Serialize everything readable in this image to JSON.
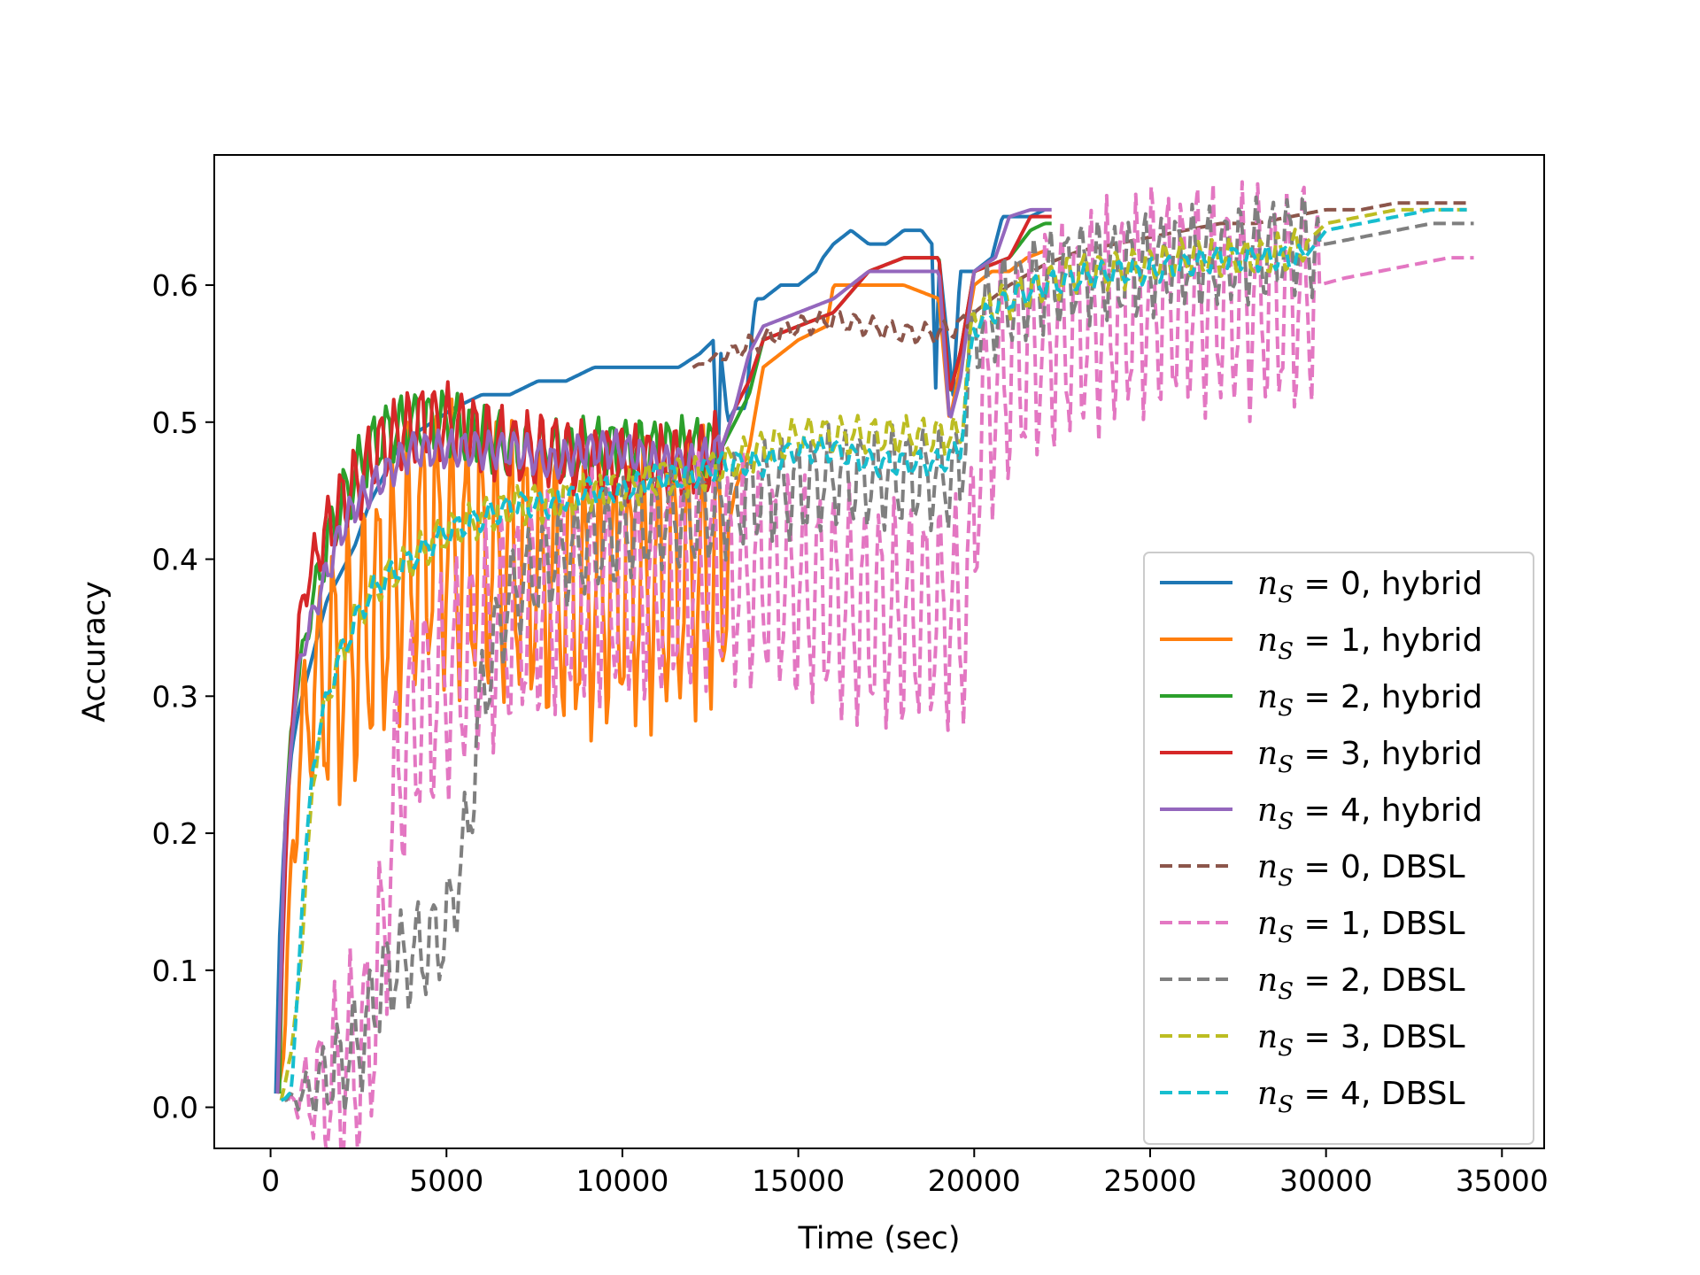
{
  "chart_data": {
    "type": "line",
    "title": "",
    "xlabel": "Time (sec)",
    "ylabel": "Accuracy",
    "xlim": [
      -1600,
      36200
    ],
    "ylim": [
      -0.03,
      0.695
    ],
    "xticks": [
      0,
      5000,
      10000,
      15000,
      20000,
      25000,
      30000,
      35000
    ],
    "xtick_labels": [
      "0",
      "5000",
      "10000",
      "15000",
      "20000",
      "25000",
      "30000",
      "35000"
    ],
    "yticks": [
      0.0,
      0.1,
      0.2,
      0.3,
      0.4,
      0.5,
      0.6
    ],
    "ytick_labels": [
      "0.0",
      "0.1",
      "0.2",
      "0.3",
      "0.4",
      "0.5",
      "0.6"
    ],
    "grid": false,
    "legend_position": "lower right",
    "series": [
      {
        "name": "n_S = 0, hybrid",
        "label_math": "n",
        "label_sub": "S",
        "label_rest": " = 0, hybrid",
        "color": "#1f77b4",
        "dash": "solid",
        "x": [
          150,
          250,
          400,
          600,
          800,
          1000,
          1300,
          1600,
          2000,
          2400,
          2800,
          3200,
          3600,
          4000,
          4600,
          5200,
          6000,
          6800,
          7600,
          8400,
          9200,
          10000,
          10800,
          11600,
          12200,
          12600,
          12700,
          12800,
          13000,
          13200,
          13500,
          13700,
          13800,
          14000,
          14500,
          15000,
          15500,
          15700,
          16000,
          16500,
          17000,
          17500,
          18000,
          18500,
          18800,
          18900,
          19000,
          19400,
          19600,
          20000,
          20500,
          20800,
          21200,
          21600,
          22000
        ],
        "y": [
          0.01,
          0.12,
          0.2,
          0.26,
          0.29,
          0.31,
          0.34,
          0.37,
          0.39,
          0.41,
          0.44,
          0.46,
          0.48,
          0.49,
          0.5,
          0.51,
          0.52,
          0.52,
          0.53,
          0.53,
          0.54,
          0.54,
          0.54,
          0.54,
          0.55,
          0.56,
          0.45,
          0.55,
          0.5,
          0.51,
          0.51,
          0.57,
          0.59,
          0.59,
          0.6,
          0.6,
          0.61,
          0.62,
          0.63,
          0.64,
          0.63,
          0.63,
          0.64,
          0.64,
          0.63,
          0.52,
          0.62,
          0.52,
          0.61,
          0.61,
          0.62,
          0.65,
          0.65,
          0.65,
          0.655
        ]
      },
      {
        "name": "n_S = 1, hybrid",
        "label_math": "n",
        "label_sub": "S",
        "label_rest": " = 1, hybrid",
        "color": "#ff7f0e",
        "dash": "solid",
        "x": [
          200,
          400,
          600,
          900,
          1200,
          1500,
          2000,
          2500,
          3000,
          3500,
          4000,
          4500,
          5000,
          5500,
          6000,
          7000,
          8000,
          9000,
          10000,
          11000,
          12000,
          12800,
          13200,
          13600,
          14000,
          15000,
          15800,
          16000,
          17000,
          18000,
          19000,
          19300,
          19600,
          20000,
          20500,
          21000,
          21500,
          22000
        ],
        "y": [
          0.01,
          0.05,
          0.18,
          0.27,
          0.3,
          0.31,
          0.32,
          0.34,
          0.36,
          0.38,
          0.4,
          0.41,
          0.41,
          0.4,
          0.4,
          0.4,
          0.38,
          0.37,
          0.38,
          0.38,
          0.39,
          0.39,
          0.45,
          0.48,
          0.54,
          0.56,
          0.57,
          0.6,
          0.6,
          0.6,
          0.59,
          0.5,
          0.54,
          0.6,
          0.61,
          0.61,
          0.62,
          0.625
        ],
        "osc_until": 13000,
        "osc_amp": 0.11,
        "osc_period": 420
      },
      {
        "name": "n_S = 2, hybrid",
        "label_math": "n",
        "label_sub": "S",
        "label_rest": " = 2, hybrid",
        "color": "#2ca02c",
        "dash": "solid",
        "x": [
          250,
          400,
          600,
          900,
          1200,
          1600,
          2000,
          2400,
          2800,
          3200,
          4000,
          5000,
          6000,
          7000,
          8000,
          9000,
          10000,
          11000,
          12000,
          12800,
          13200,
          13600,
          14000,
          15000,
          16000,
          17000,
          18000,
          19000,
          19300,
          19600,
          20000,
          21000,
          21600,
          22000,
          22200
        ],
        "y": [
          0.01,
          0.2,
          0.28,
          0.33,
          0.37,
          0.41,
          0.44,
          0.46,
          0.48,
          0.49,
          0.5,
          0.5,
          0.49,
          0.48,
          0.48,
          0.48,
          0.48,
          0.48,
          0.48,
          0.48,
          0.5,
          0.52,
          0.56,
          0.57,
          0.58,
          0.61,
          0.62,
          0.62,
          0.52,
          0.55,
          0.61,
          0.62,
          0.64,
          0.645,
          0.645
        ],
        "osc_until": 12800,
        "osc_amp": 0.025,
        "osc_period": 400
      },
      {
        "name": "n_S = 3, hybrid",
        "label_math": "n",
        "label_sub": "S",
        "label_rest": " = 3, hybrid",
        "color": "#d62728",
        "dash": "solid",
        "x": [
          200,
          400,
          600,
          800,
          1000,
          1400,
          1800,
          2200,
          2600,
          3000,
          3600,
          4200,
          5000,
          6000,
          7000,
          8000,
          9000,
          10000,
          11000,
          12000,
          12800,
          13200,
          13600,
          14000,
          15000,
          16000,
          17000,
          18000,
          19000,
          19300,
          19600,
          20000,
          21000,
          21600,
          22200
        ],
        "y": [
          0.01,
          0.16,
          0.28,
          0.35,
          0.38,
          0.41,
          0.43,
          0.45,
          0.46,
          0.48,
          0.49,
          0.5,
          0.5,
          0.49,
          0.48,
          0.48,
          0.47,
          0.47,
          0.47,
          0.47,
          0.48,
          0.51,
          0.53,
          0.56,
          0.57,
          0.58,
          0.61,
          0.62,
          0.62,
          0.52,
          0.55,
          0.61,
          0.62,
          0.65,
          0.65
        ],
        "osc_until": 12800,
        "osc_amp": 0.03,
        "osc_period": 380
      },
      {
        "name": "n_S = 4, hybrid",
        "label_math": "n",
        "label_sub": "S",
        "label_rest": " = 4, hybrid",
        "color": "#9467bd",
        "dash": "solid",
        "x": [
          200,
          400,
          600,
          800,
          1200,
          1600,
          2000,
          2400,
          2800,
          3200,
          4000,
          5000,
          6000,
          7000,
          8000,
          9000,
          10000,
          11000,
          12000,
          12800,
          13200,
          13600,
          14000,
          15000,
          16000,
          17000,
          18000,
          19000,
          19300,
          19600,
          20000,
          20600,
          21000,
          21600,
          22200
        ],
        "y": [
          0.01,
          0.2,
          0.27,
          0.32,
          0.36,
          0.39,
          0.42,
          0.44,
          0.45,
          0.46,
          0.48,
          0.48,
          0.48,
          0.48,
          0.47,
          0.48,
          0.48,
          0.47,
          0.47,
          0.48,
          0.51,
          0.55,
          0.57,
          0.58,
          0.59,
          0.61,
          0.61,
          0.61,
          0.5,
          0.53,
          0.61,
          0.62,
          0.65,
          0.655,
          0.655
        ],
        "osc_until": 12800,
        "osc_amp": 0.015,
        "osc_period": 360
      },
      {
        "name": "n_S = 0, DBSL",
        "label_math": "n",
        "label_sub": "S",
        "label_rest": " = 0, DBSL",
        "color": "#8c564b",
        "dash": "dashed",
        "x": [
          12000,
          13000,
          14000,
          15000,
          16000,
          17000,
          18000,
          19000,
          19600,
          20000,
          21000,
          22000,
          23000,
          24000,
          25000,
          26000,
          27000,
          28000,
          29000,
          30000,
          31000,
          32000,
          33000,
          34000
        ],
        "y": [
          0.54,
          0.55,
          0.56,
          0.57,
          0.575,
          0.57,
          0.565,
          0.565,
          0.57,
          0.58,
          0.6,
          0.615,
          0.625,
          0.63,
          0.635,
          0.64,
          0.645,
          0.645,
          0.65,
          0.655,
          0.655,
          0.66,
          0.66,
          0.66
        ],
        "osc_until": 20000,
        "osc_amp": 0.008,
        "osc_period": 500
      },
      {
        "name": "n_S = 1, DBSL",
        "label_math": "n",
        "label_sub": "S",
        "label_rest": " = 1, DBSL",
        "color": "#e377c2",
        "dash": "dashed",
        "x": [
          500,
          1000,
          2000,
          2800,
          3200,
          3600,
          4000,
          5000,
          6000,
          7000,
          8000,
          9000,
          10000,
          11000,
          12000,
          13000,
          14000,
          15000,
          16000,
          17000,
          18000,
          19000,
          19800,
          20200,
          20600,
          21000,
          22000,
          23000,
          24000,
          25000,
          26000,
          27000,
          28000,
          29000,
          29800,
          30500,
          31500,
          32500,
          33500,
          34200
        ],
        "y": [
          0.005,
          0.01,
          0.02,
          0.05,
          0.12,
          0.24,
          0.28,
          0.31,
          0.34,
          0.36,
          0.37,
          0.38,
          0.38,
          0.38,
          0.39,
          0.39,
          0.39,
          0.38,
          0.37,
          0.36,
          0.36,
          0.36,
          0.36,
          0.5,
          0.52,
          0.54,
          0.56,
          0.57,
          0.58,
          0.59,
          0.59,
          0.59,
          0.59,
          0.59,
          0.6,
          0.605,
          0.61,
          0.615,
          0.62,
          0.62
        ],
        "osc_until": 29800,
        "osc_amp": 0.09,
        "osc_period": 430
      },
      {
        "name": "n_S = 2, DBSL",
        "label_math": "n",
        "label_sub": "S",
        "label_rest": " = 2, DBSL",
        "color": "#7f7f7f",
        "dash": "dashed",
        "x": [
          400,
          1000,
          2000,
          2600,
          3000,
          3400,
          4000,
          4600,
          5000,
          5600,
          6000,
          6600,
          7000,
          8000,
          9000,
          10000,
          11000,
          12000,
          13000,
          14000,
          15000,
          16000,
          17000,
          18000,
          19000,
          19600,
          20000,
          21000,
          22000,
          23000,
          24000,
          25000,
          26000,
          27000,
          28000,
          29000,
          30000,
          31000,
          32000,
          33000,
          34200
        ],
        "y": [
          0.005,
          0.01,
          0.03,
          0.05,
          0.08,
          0.1,
          0.11,
          0.12,
          0.13,
          0.2,
          0.3,
          0.36,
          0.38,
          0.4,
          0.41,
          0.42,
          0.43,
          0.43,
          0.44,
          0.45,
          0.45,
          0.46,
          0.46,
          0.46,
          0.46,
          0.46,
          0.57,
          0.59,
          0.6,
          0.61,
          0.61,
          0.615,
          0.62,
          0.62,
          0.625,
          0.63,
          0.63,
          0.635,
          0.64,
          0.645,
          0.645
        ],
        "osc_until": 29800,
        "osc_amp": 0.04,
        "osc_period": 450
      },
      {
        "name": "n_S = 3, DBSL",
        "label_math": "n",
        "label_sub": "S",
        "label_rest": " = 3, DBSL",
        "color": "#bcbd22",
        "dash": "dashed",
        "x": [
          300,
          600,
          900,
          1200,
          1600,
          2000,
          2500,
          3000,
          4000,
          5000,
          6000,
          7000,
          8000,
          9000,
          10000,
          11000,
          12000,
          13000,
          14000,
          15000,
          16000,
          17000,
          18000,
          19000,
          19600,
          20000,
          21000,
          22000,
          23000,
          24000,
          25000,
          26000,
          27000,
          28000,
          29000,
          29400,
          30000,
          31000,
          32000,
          33000,
          34000
        ],
        "y": [
          0.005,
          0.04,
          0.12,
          0.24,
          0.3,
          0.33,
          0.36,
          0.38,
          0.4,
          0.42,
          0.43,
          0.44,
          0.44,
          0.45,
          0.45,
          0.46,
          0.46,
          0.47,
          0.48,
          0.49,
          0.49,
          0.49,
          0.49,
          0.49,
          0.49,
          0.58,
          0.59,
          0.6,
          0.61,
          0.61,
          0.615,
          0.62,
          0.62,
          0.62,
          0.625,
          0.63,
          0.645,
          0.65,
          0.655,
          0.655,
          0.655
        ],
        "osc_until": 29400,
        "osc_amp": 0.015,
        "osc_period": 460
      },
      {
        "name": "n_S = 4, DBSL",
        "label_math": "n",
        "label_sub": "S",
        "label_rest": " = 4, DBSL",
        "color": "#17becf",
        "dash": "dashed",
        "x": [
          300,
          600,
          900,
          1200,
          1600,
          2000,
          2500,
          3000,
          4000,
          5000,
          6000,
          7000,
          8000,
          9000,
          10000,
          11000,
          12000,
          13000,
          14000,
          15000,
          16000,
          17000,
          18000,
          19000,
          19600,
          20000,
          21000,
          22000,
          23000,
          24000,
          25000,
          26000,
          27000,
          28000,
          29000,
          29400,
          30000,
          31000,
          32000,
          33000,
          34000
        ],
        "y": [
          0.005,
          0.01,
          0.15,
          0.25,
          0.3,
          0.33,
          0.36,
          0.38,
          0.4,
          0.42,
          0.43,
          0.44,
          0.44,
          0.45,
          0.45,
          0.46,
          0.46,
          0.47,
          0.47,
          0.48,
          0.48,
          0.47,
          0.47,
          0.47,
          0.48,
          0.57,
          0.59,
          0.6,
          0.605,
          0.61,
          0.61,
          0.615,
          0.62,
          0.62,
          0.62,
          0.62,
          0.64,
          0.645,
          0.65,
          0.655,
          0.655
        ],
        "osc_until": 29400,
        "osc_amp": 0.01,
        "osc_period": 470
      }
    ]
  }
}
